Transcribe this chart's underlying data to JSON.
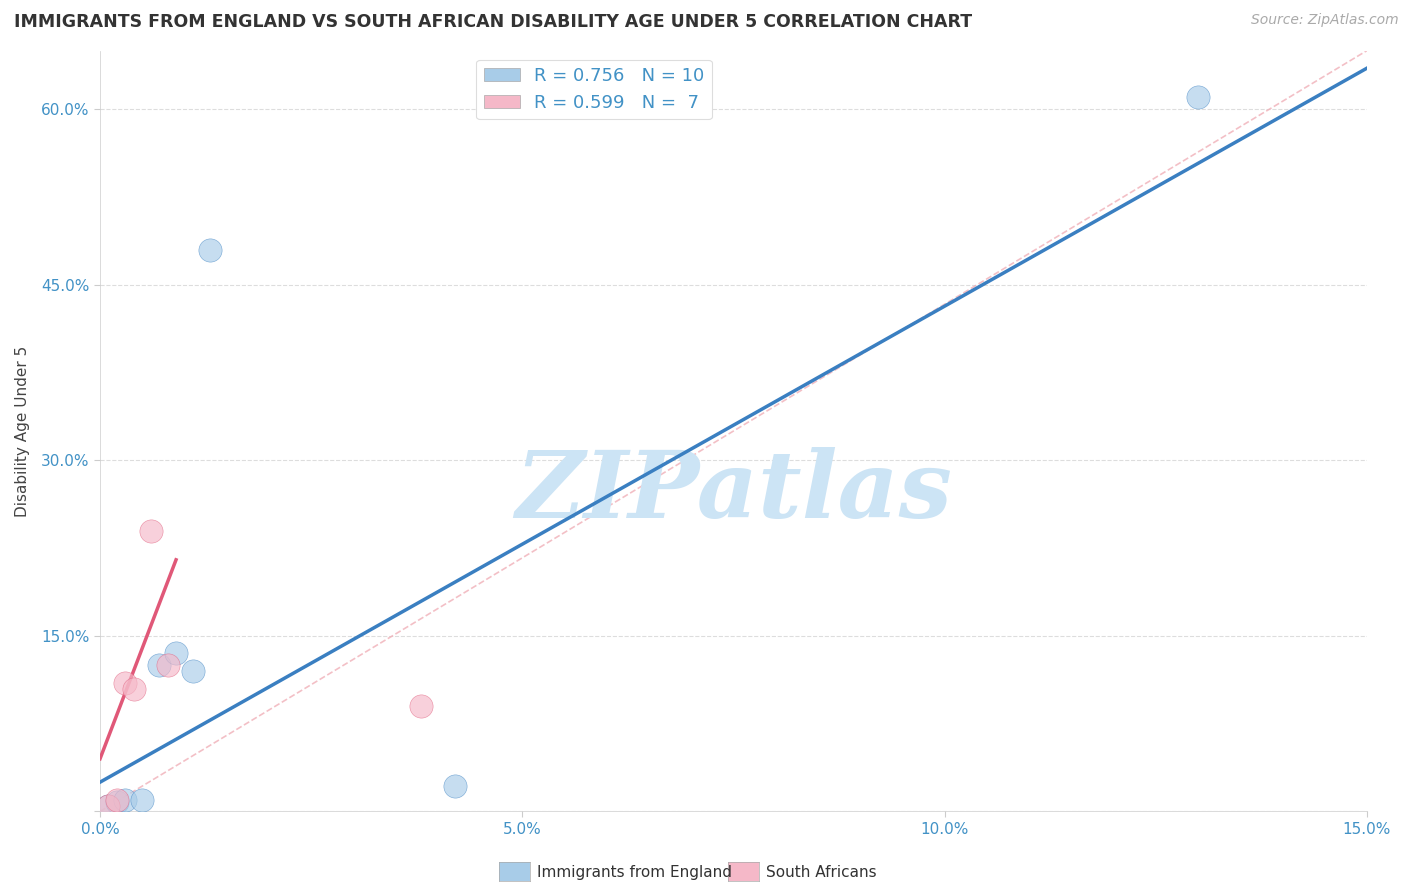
{
  "title": "IMMIGRANTS FROM ENGLAND VS SOUTH AFRICAN DISABILITY AGE UNDER 5 CORRELATION CHART",
  "source": "Source: ZipAtlas.com",
  "ylabel": "Disability Age Under 5",
  "legend_label1": "Immigrants from England",
  "legend_label2": "South Africans",
  "r1": 0.756,
  "n1": 10,
  "r2": 0.599,
  "n2": 7,
  "xlim": [
    0.0,
    0.15
  ],
  "ylim": [
    0.0,
    0.65
  ],
  "xticks": [
    0.0,
    0.05,
    0.1,
    0.15
  ],
  "yticks": [
    0.0,
    0.15,
    0.3,
    0.45,
    0.6
  ],
  "xtick_labels": [
    "0.0%",
    "5.0%",
    "10.0%",
    "15.0%"
  ],
  "ytick_labels": [
    "",
    "15.0%",
    "30.0%",
    "45.0%",
    "60.0%"
  ],
  "color_blue": "#a8cce8",
  "color_pink": "#f5b8c8",
  "color_line_blue": "#3a7fc1",
  "color_line_pink": "#e05878",
  "color_ref_line": "#f0b0b8",
  "color_title": "#333333",
  "color_axis_blue": "#4292c6",
  "blue_points_x": [
    0.001,
    0.002,
    0.003,
    0.005,
    0.007,
    0.009,
    0.011,
    0.013,
    0.042,
    0.13
  ],
  "blue_points_y": [
    0.005,
    0.008,
    0.01,
    0.01,
    0.125,
    0.135,
    0.12,
    0.48,
    0.022,
    0.61
  ],
  "pink_points_x": [
    0.001,
    0.002,
    0.003,
    0.004,
    0.006,
    0.008,
    0.038
  ],
  "pink_points_y": [
    0.005,
    0.01,
    0.11,
    0.105,
    0.24,
    0.125,
    0.09
  ],
  "blue_line_x": [
    0.0,
    0.15
  ],
  "blue_line_y": [
    0.025,
    0.635
  ],
  "pink_line_x": [
    0.0,
    0.009
  ],
  "pink_line_y": [
    0.045,
    0.215
  ],
  "ref_line_x": [
    0.0,
    0.15
  ],
  "ref_line_y": [
    0.0,
    0.65
  ],
  "watermark": "ZIPatlas",
  "watermark_color": "#cce4f5",
  "background_color": "#ffffff"
}
